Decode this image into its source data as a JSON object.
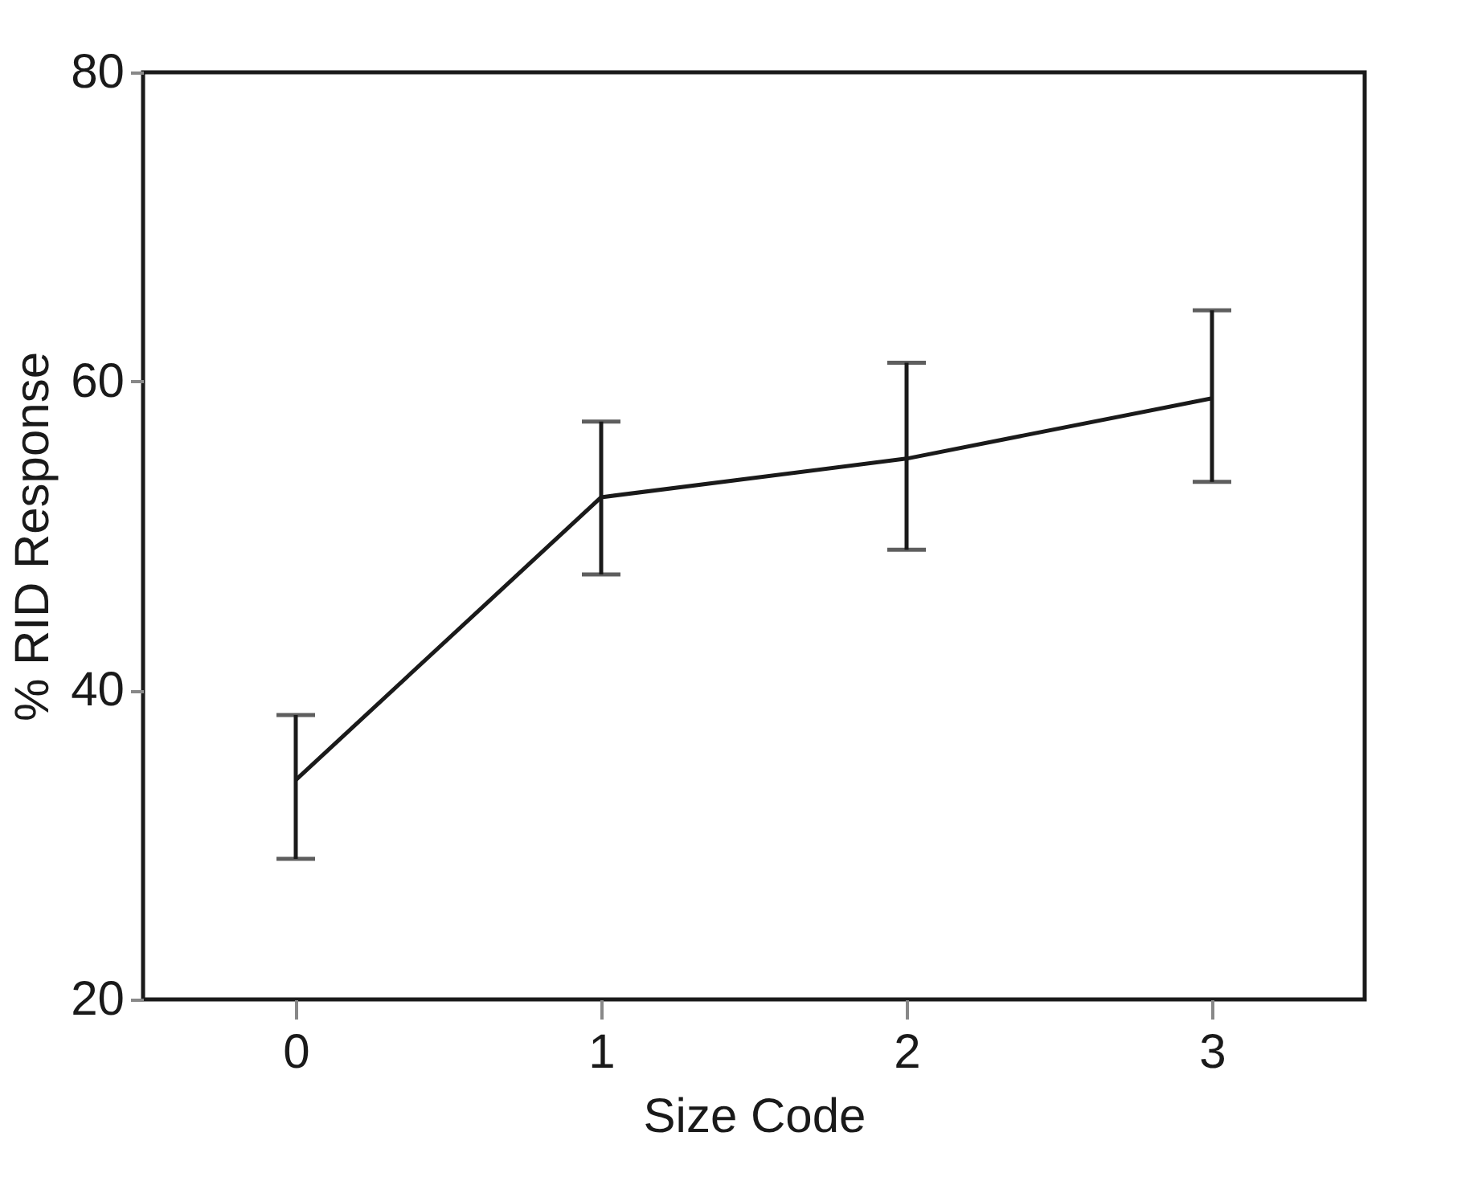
{
  "chart_data": {
    "type": "line",
    "xlabel": "Size Code",
    "ylabel": "% RID Response",
    "x": [
      0,
      1,
      2,
      3
    ],
    "series": [
      {
        "color": "#1a1a1a",
        "values": [
          34.2,
          52.5,
          55.0,
          58.9
        ],
        "errors": [
          [
            29.1,
            38.4
          ],
          [
            47.5,
            57.4
          ],
          [
            49.1,
            61.2
          ],
          [
            53.5,
            64.6
          ]
        ]
      }
    ],
    "xlim": [
      -0.5,
      3.5
    ],
    "xticks": [
      0,
      1,
      2,
      3
    ],
    "ylim": [
      20,
      80
    ],
    "yticks": [
      20,
      40,
      60,
      80
    ],
    "grid": false,
    "marker": "none",
    "line_style": "solid"
  }
}
